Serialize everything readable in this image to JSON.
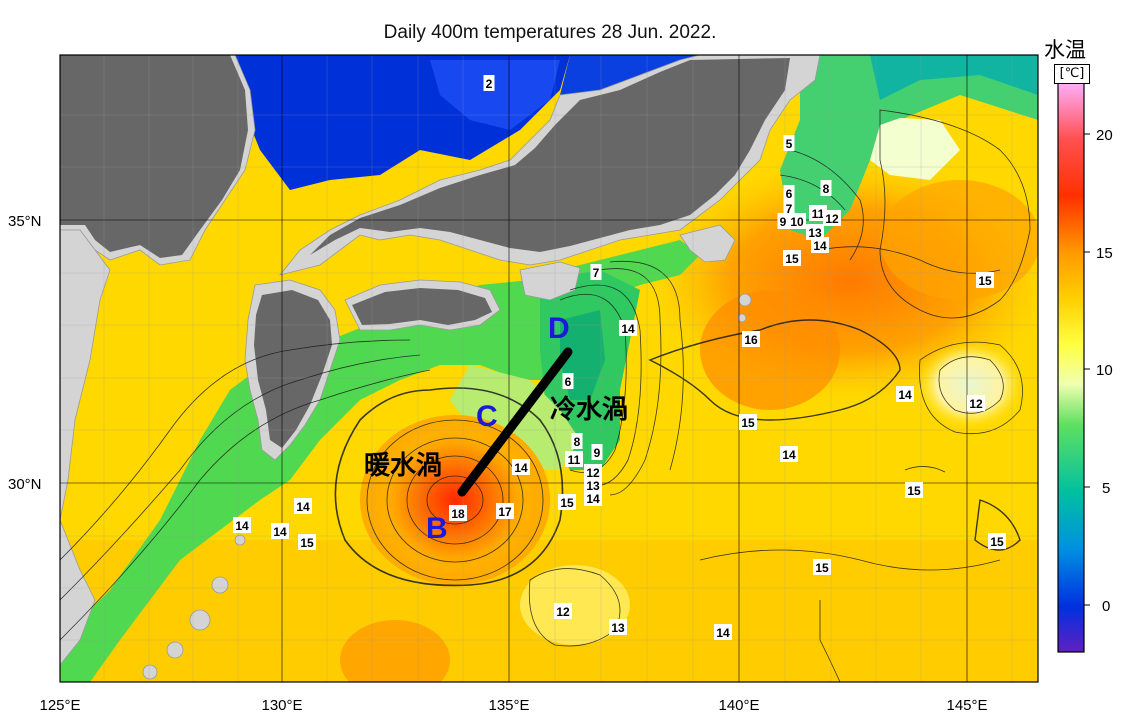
{
  "title": "Daily 400m temperatures 28 Jun. 2022.",
  "colorbar": {
    "title": "水温",
    "unit": "[℃]",
    "ticks": [
      "20",
      "15",
      "10",
      "5",
      "0"
    ],
    "stops": [
      "#ff80ff",
      "#ff0000",
      "#ff8c00",
      "#ffe400",
      "#ffff80",
      "#d4f0b0",
      "#40d840",
      "#00b4b4",
      "#0070d0",
      "#0020d0",
      "#6020c0"
    ]
  },
  "axes": {
    "lon_ticks": [
      "125°E",
      "130°E",
      "135°E",
      "140°E",
      "145°E"
    ],
    "lat_ticks": [
      "35°N",
      "30°N"
    ]
  },
  "annotations": {
    "warm_eddy": "暖水渦",
    "cold_eddy": "冷水渦",
    "point_b": "B",
    "point_c": "C",
    "point_d": "D"
  },
  "contour_labels": [
    "2",
    "5",
    "6",
    "7",
    "8",
    "9",
    "10",
    "11",
    "12",
    "13",
    "14",
    "15",
    "7",
    "14",
    "16",
    "15",
    "6",
    "8",
    "9",
    "11",
    "12",
    "13",
    "14",
    "15",
    "14",
    "16",
    "17",
    "18",
    "14",
    "14",
    "14",
    "15",
    "14",
    "15",
    "12",
    "15",
    "14",
    "15",
    "15",
    "14",
    "12",
    "13",
    "14"
  ],
  "land_color": "#d4d4d4",
  "land_dark_color": "#666666"
}
